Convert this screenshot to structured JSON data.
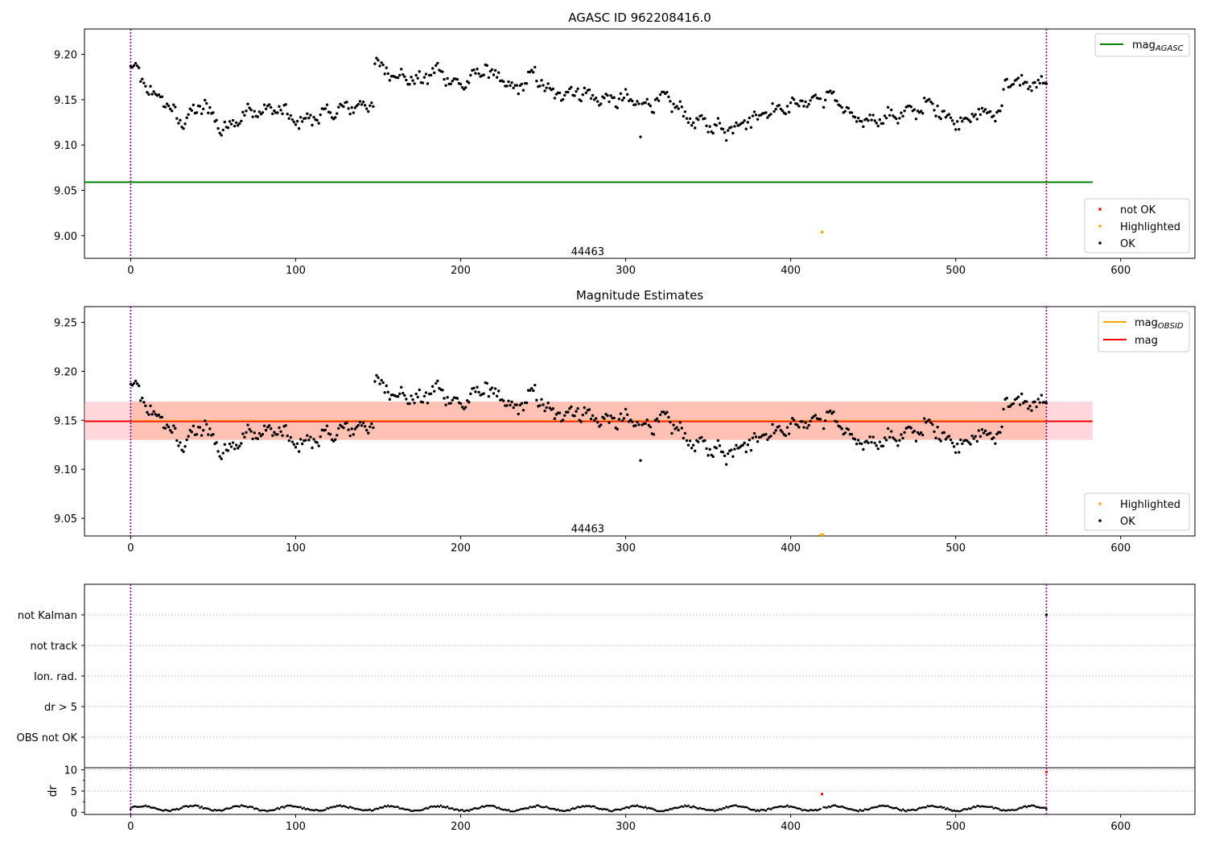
{
  "figure": {
    "colors": {
      "ok": "#000000",
      "not_ok": "#ff0000",
      "highlighted": "#ffa500",
      "agasc_line": "#008000",
      "mag_line": "#ff0000",
      "obsid_line": "#ffa500",
      "band": "#ff9966",
      "band_outer": "#ffb6c1",
      "marker_line": "#800080"
    },
    "obsid_boundaries": [
      0,
      555
    ],
    "obsid_label": "44463"
  },
  "chart_data": [
    {
      "type": "scatter",
      "title": "AGASC ID 962208416.0",
      "xlim": [
        -28,
        645
      ],
      "ylim": [
        8.975,
        9.228
      ],
      "xticks": [
        0,
        100,
        200,
        300,
        400,
        500,
        600
      ],
      "yticks": [
        9.0,
        9.05,
        9.1,
        9.15,
        9.2
      ],
      "ytick_labels": [
        "9.00",
        "9.05",
        "9.10",
        "9.15",
        "9.20"
      ],
      "mag_agasc": 9.059,
      "mag_agasc_x": [
        -28,
        583
      ],
      "highlighted_points": [
        {
          "x": 419,
          "y": 9.004
        }
      ],
      "legend_upper": [
        {
          "label": "mag",
          "sub": "AGASC",
          "color": "#008000"
        }
      ],
      "legend_lower": [
        {
          "label": "not OK",
          "color": "#ff0000"
        },
        {
          "label": "Highlighted",
          "color": "#ffa500"
        },
        {
          "label": "OK",
          "color": "#000000"
        }
      ],
      "obsid_label_y": 8.983,
      "anchors": [
        [
          0,
          9.185
        ],
        [
          5,
          9.18
        ],
        [
          10,
          9.16
        ],
        [
          20,
          9.15
        ],
        [
          30,
          9.125
        ],
        [
          45,
          9.145
        ],
        [
          55,
          9.117
        ],
        [
          70,
          9.135
        ],
        [
          90,
          9.14
        ],
        [
          100,
          9.125
        ],
        [
          120,
          9.135
        ],
        [
          135,
          9.143
        ],
        [
          147,
          9.145
        ],
        [
          148,
          9.19
        ],
        [
          160,
          9.178
        ],
        [
          175,
          9.17
        ],
        [
          185,
          9.183
        ],
        [
          200,
          9.165
        ],
        [
          215,
          9.185
        ],
        [
          232,
          9.16
        ],
        [
          245,
          9.178
        ],
        [
          255,
          9.155
        ],
        [
          270,
          9.16
        ],
        [
          285,
          9.15
        ],
        [
          300,
          9.15
        ],
        [
          315,
          9.145
        ],
        [
          325,
          9.152
        ],
        [
          340,
          9.127
        ],
        [
          360,
          9.118
        ],
        [
          375,
          9.128
        ],
        [
          390,
          9.14
        ],
        [
          410,
          9.148
        ],
        [
          425,
          9.155
        ],
        [
          440,
          9.125
        ],
        [
          470,
          9.135
        ],
        [
          485,
          9.145
        ],
        [
          500,
          9.125
        ],
        [
          515,
          9.135
        ],
        [
          527,
          9.135
        ],
        [
          530,
          9.17
        ],
        [
          555,
          9.165
        ]
      ],
      "noise": 0.006,
      "outliers": [
        [
          309,
          9.109
        ],
        [
          361,
          9.105
        ]
      ]
    },
    {
      "type": "scatter",
      "title": "Magnitude Estimates",
      "xlim": [
        -28,
        645
      ],
      "ylim": [
        9.032,
        9.266
      ],
      "xticks": [
        0,
        100,
        200,
        300,
        400,
        500,
        600
      ],
      "yticks": [
        9.05,
        9.1,
        9.15,
        9.2,
        9.25
      ],
      "ytick_labels": [
        "9.05",
        "9.10",
        "9.15",
        "9.20",
        "9.25"
      ],
      "mag": 9.149,
      "mag_band": [
        9.13,
        9.169
      ],
      "mag_line_x": [
        -28,
        583
      ],
      "band_outer_x": [
        -28,
        583
      ],
      "band_inner_x": [
        0,
        555
      ],
      "highlighted_points": [
        {
          "x": 419,
          "y": 9.032
        }
      ],
      "legend_upper": [
        {
          "label": "mag",
          "sub": "OBSID",
          "color": "#ffa500"
        },
        {
          "label": "mag",
          "sub": "",
          "color": "#ff0000"
        }
      ],
      "legend_lower": [
        {
          "label": "Highlighted",
          "color": "#ffa500"
        },
        {
          "label": "OK",
          "color": "#000000"
        }
      ],
      "obsid_label_y": 9.04
    },
    {
      "type": "scatter",
      "title": "",
      "categories": [
        "not Kalman",
        "not track",
        "Ion. rad.",
        "dr > 5",
        "OBS not OK"
      ],
      "flag_points": [
        {
          "x": 555,
          "category": "not Kalman"
        }
      ],
      "xlim": [
        -28,
        645
      ]
    },
    {
      "type": "scatter",
      "title": "",
      "ylabel": "dr",
      "xlim": [
        -28,
        645
      ],
      "ylim": [
        -0.5,
        10.5
      ],
      "xticks": [
        0,
        100,
        200,
        300,
        400,
        500,
        600
      ],
      "yticks": [
        0,
        5,
        10
      ],
      "ytick_labels": [
        "0",
        "5",
        "10"
      ],
      "typical_dr": [
        0.2,
        2.0
      ],
      "not_ok_points": [
        {
          "x": 419,
          "y": 4.3
        },
        {
          "x": 555,
          "y": 9.5
        }
      ]
    }
  ]
}
